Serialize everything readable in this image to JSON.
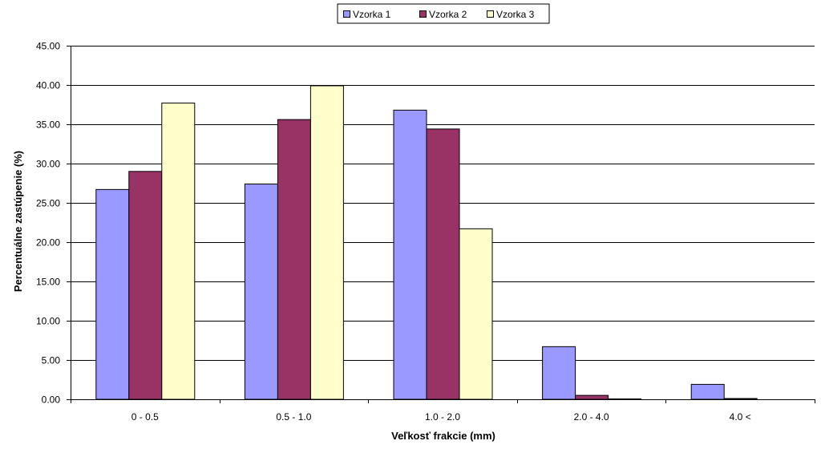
{
  "chart_data": {
    "type": "bar",
    "title": "",
    "xlabel": "Veľkosť frakcie (mm)",
    "ylabel": "Percentuálne zastúpenie (%)",
    "ylim": [
      0,
      45
    ],
    "ytick_step": 5,
    "ytick_decimals": 2,
    "grid": true,
    "legend_position": "top-center",
    "categories": [
      "0 - 0.5",
      "0.5 - 1.0",
      "1.0 - 2.0",
      "2.0 - 4.0",
      "4.0 <"
    ],
    "series": [
      {
        "name": "Vzorka 1",
        "color": "#9999ff",
        "values": [
          26.7,
          27.4,
          36.8,
          6.7,
          1.9
        ]
      },
      {
        "name": "Vzorka 2",
        "color": "#993366",
        "values": [
          29.0,
          35.6,
          34.4,
          0.5,
          0.1
        ]
      },
      {
        "name": "Vzorka 3",
        "color": "#ffffcc",
        "values": [
          37.7,
          39.9,
          21.7,
          0.05,
          0.0
        ]
      }
    ]
  }
}
